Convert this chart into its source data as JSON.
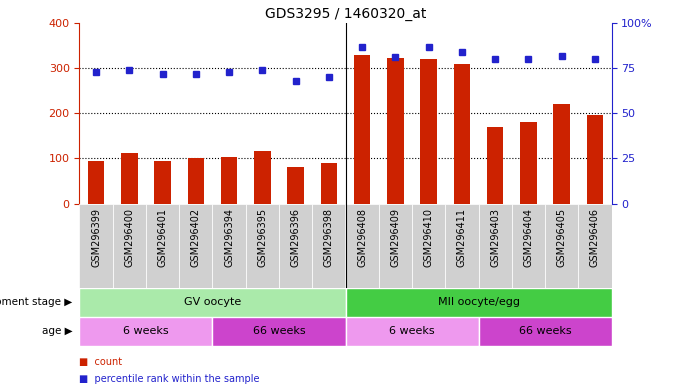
{
  "title": "GDS3295 / 1460320_at",
  "samples": [
    "GSM296399",
    "GSM296400",
    "GSM296401",
    "GSM296402",
    "GSM296394",
    "GSM296395",
    "GSM296396",
    "GSM296398",
    "GSM296408",
    "GSM296409",
    "GSM296410",
    "GSM296411",
    "GSM296403",
    "GSM296404",
    "GSM296405",
    "GSM296406"
  ],
  "counts": [
    95,
    112,
    95,
    100,
    102,
    117,
    82,
    90,
    330,
    323,
    320,
    310,
    170,
    180,
    220,
    197
  ],
  "percentiles": [
    73,
    74,
    72,
    72,
    73,
    74,
    68,
    70,
    87,
    81,
    87,
    84,
    80,
    80,
    82,
    80
  ],
  "ylim_left": [
    0,
    400
  ],
  "ylim_right": [
    0,
    100
  ],
  "yticks_left": [
    0,
    100,
    200,
    300,
    400
  ],
  "yticks_right": [
    0,
    25,
    50,
    75,
    100
  ],
  "bar_color": "#cc2200",
  "dot_color": "#2222cc",
  "background_color": "#ffffff",
  "plot_bg_color": "#ffffff",
  "xlabel_bg_color": "#d0d0d0",
  "dev_stage_groups": [
    {
      "label": "GV oocyte",
      "start": 0,
      "end": 8,
      "color": "#aaeaaa"
    },
    {
      "label": "MII oocyte/egg",
      "start": 8,
      "end": 16,
      "color": "#44cc44"
    }
  ],
  "age_groups": [
    {
      "label": "6 weeks",
      "start": 0,
      "end": 4,
      "color": "#ee99ee"
    },
    {
      "label": "66 weeks",
      "start": 4,
      "end": 8,
      "color": "#cc44cc"
    },
    {
      "label": "6 weeks",
      "start": 8,
      "end": 12,
      "color": "#ee99ee"
    },
    {
      "label": "66 weeks",
      "start": 12,
      "end": 16,
      "color": "#cc44cc"
    }
  ],
  "legend_items": [
    {
      "label": "count",
      "color": "#cc2200"
    },
    {
      "label": "percentile rank within the sample",
      "color": "#2222cc"
    }
  ],
  "tick_label_fontsize": 7,
  "title_fontsize": 10,
  "row_label_fontsize": 7.5,
  "group_label_fontsize": 8
}
